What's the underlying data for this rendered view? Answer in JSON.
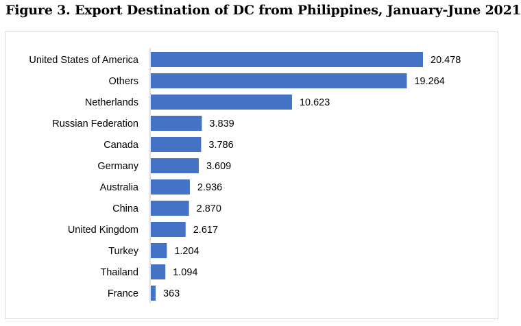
{
  "figure": {
    "title": "Figure 3. Export Destination of DC from Philippines, January-June 2021"
  },
  "chart_data": {
    "type": "bar",
    "orientation": "horizontal",
    "title": "",
    "xlabel": "",
    "ylabel": "",
    "categories": [
      "United States of America",
      "Others",
      "Netherlands",
      "Russian Federation",
      "Canada",
      "Germany",
      "Australia",
      "China",
      "United Kingdom",
      "Turkey",
      "Thailand",
      "France"
    ],
    "values": [
      20478,
      19264,
      10623,
      3839,
      3786,
      3609,
      2936,
      2870,
      2617,
      1204,
      1094,
      363
    ],
    "value_labels": [
      "20.478",
      "19.264",
      "10.623",
      "3.839",
      "3.786",
      "3.609",
      "2.936",
      "2.870",
      "2.617",
      "1.204",
      "1.094",
      "363"
    ],
    "xlim": [
      0,
      25000
    ],
    "grid": false,
    "legend": "none",
    "bar_color": "#4472c4",
    "axis_color": "#bfbfbf"
  }
}
